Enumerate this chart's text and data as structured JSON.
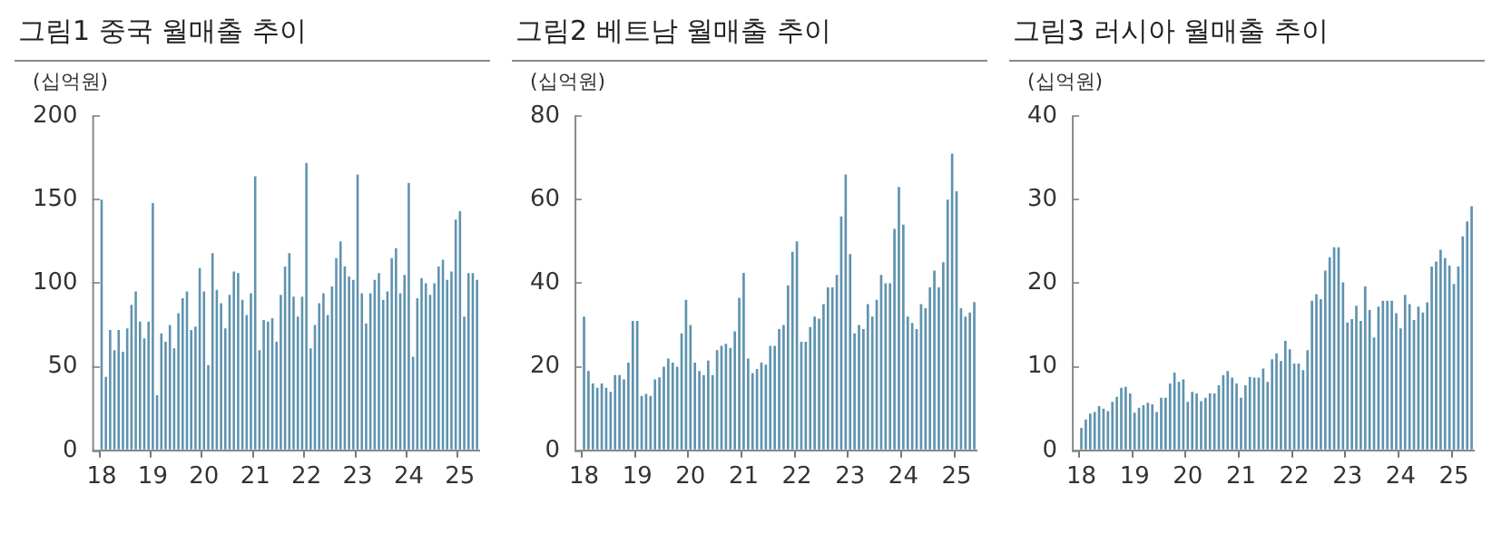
{
  "chart_data": [
    {
      "type": "bar",
      "title": "그림1 중국 월매출 추이",
      "ylabel": "(십억원)",
      "color": "#5f93af",
      "ylim": [
        0,
        200
      ],
      "yticks": [
        0,
        50,
        100,
        150,
        200
      ],
      "grid": false,
      "legend": false,
      "categories": [
        "18",
        null,
        null,
        null,
        null,
        null,
        null,
        null,
        null,
        null,
        null,
        null,
        "19",
        null,
        null,
        null,
        null,
        null,
        null,
        null,
        null,
        null,
        null,
        null,
        "20",
        null,
        null,
        null,
        null,
        null,
        null,
        null,
        null,
        null,
        null,
        null,
        "21",
        null,
        null,
        null,
        null,
        null,
        null,
        null,
        null,
        null,
        null,
        null,
        "22",
        null,
        null,
        null,
        null,
        null,
        null,
        null,
        null,
        null,
        null,
        null,
        "23",
        null,
        null,
        null,
        null,
        null,
        null,
        null,
        null,
        null,
        null,
        null,
        "24",
        null,
        null,
        null,
        null,
        null,
        null,
        null,
        null,
        null,
        null,
        null,
        "25",
        null,
        null,
        null,
        null
      ],
      "values": [
        150,
        44,
        72,
        60,
        72,
        59,
        73,
        87,
        95,
        77,
        67,
        77,
        148,
        33,
        70,
        65,
        75,
        61,
        82,
        91,
        95,
        72,
        74,
        109,
        95,
        51,
        118,
        96,
        88,
        73,
        93,
        107,
        106,
        90,
        81,
        94,
        164,
        60,
        78,
        77,
        79,
        65,
        93,
        110,
        118,
        92,
        80,
        92,
        172,
        61,
        75,
        88,
        94,
        81,
        98,
        115,
        125,
        110,
        104,
        102,
        165,
        94,
        76,
        94,
        102,
        106,
        90,
        95,
        115,
        121,
        94,
        105,
        160,
        56,
        91,
        103,
        100,
        93,
        100,
        110,
        114,
        102,
        107,
        138,
        143,
        80,
        106,
        106,
        102
      ]
    },
    {
      "type": "bar",
      "title": "그림2 베트남 월매출 추이",
      "ylabel": "(십억원)",
      "color": "#5f93af",
      "ylim": [
        0,
        80
      ],
      "yticks": [
        0,
        20,
        40,
        60,
        80
      ],
      "grid": false,
      "legend": false,
      "categories": [
        "18",
        null,
        null,
        null,
        null,
        null,
        null,
        null,
        null,
        null,
        null,
        null,
        "19",
        null,
        null,
        null,
        null,
        null,
        null,
        null,
        null,
        null,
        null,
        null,
        "20",
        null,
        null,
        null,
        null,
        null,
        null,
        null,
        null,
        null,
        null,
        null,
        "21",
        null,
        null,
        null,
        null,
        null,
        null,
        null,
        null,
        null,
        null,
        null,
        "22",
        null,
        null,
        null,
        null,
        null,
        null,
        null,
        null,
        null,
        null,
        null,
        "23",
        null,
        null,
        null,
        null,
        null,
        null,
        null,
        null,
        null,
        null,
        null,
        "24",
        null,
        null,
        null,
        null,
        null,
        null,
        null,
        null,
        null,
        null,
        null,
        "25",
        null,
        null,
        null,
        null
      ],
      "values": [
        32,
        19,
        16,
        15,
        16,
        15,
        14,
        18,
        18,
        17,
        21,
        31,
        31,
        13,
        13.5,
        13,
        17,
        17.5,
        20,
        22,
        21,
        20,
        28,
        36,
        30,
        21,
        19,
        18,
        21.5,
        18,
        24,
        25,
        25.5,
        24.5,
        28.5,
        36.5,
        42.5,
        22,
        18.5,
        19.5,
        21,
        20.5,
        25,
        25,
        29,
        30,
        39.5,
        47.5,
        50,
        26,
        26,
        29.5,
        32,
        31.5,
        35,
        39,
        39,
        42,
        56,
        66,
        47,
        28,
        30,
        29,
        35,
        32,
        36,
        42,
        40,
        40,
        53,
        63,
        54,
        32,
        30.5,
        29,
        35,
        34,
        39,
        43,
        39,
        45,
        60,
        71,
        62,
        34,
        32,
        33,
        35.5
      ]
    },
    {
      "type": "bar",
      "title": "그림3 러시아 월매출 추이",
      "ylabel": "(십억원)",
      "color": "#5f93af",
      "ylim": [
        0,
        40
      ],
      "yticks": [
        0,
        10,
        20,
        30,
        40
      ],
      "grid": false,
      "legend": false,
      "categories": [
        "18",
        null,
        null,
        null,
        null,
        null,
        null,
        null,
        null,
        null,
        null,
        null,
        "19",
        null,
        null,
        null,
        null,
        null,
        null,
        null,
        null,
        null,
        null,
        null,
        "20",
        null,
        null,
        null,
        null,
        null,
        null,
        null,
        null,
        null,
        null,
        null,
        "21",
        null,
        null,
        null,
        null,
        null,
        null,
        null,
        null,
        null,
        null,
        null,
        "22",
        null,
        null,
        null,
        null,
        null,
        null,
        null,
        null,
        null,
        null,
        null,
        "23",
        null,
        null,
        null,
        null,
        null,
        null,
        null,
        null,
        null,
        null,
        null,
        "24",
        null,
        null,
        null,
        null,
        null,
        null,
        null,
        null,
        null,
        null,
        null,
        "25",
        null,
        null,
        null,
        null
      ],
      "values": [
        2.7,
        3.7,
        4.4,
        4.6,
        5.3,
        5,
        4.7,
        5.8,
        6.4,
        7.5,
        7.6,
        6.8,
        4.5,
        5.1,
        5.4,
        5.7,
        5.5,
        4.6,
        6.3,
        6.3,
        8,
        9.3,
        8.2,
        8.5,
        5.8,
        7,
        6.8,
        5.9,
        6.3,
        6.8,
        6.8,
        7.8,
        9,
        9.5,
        8.7,
        8,
        6.3,
        7.8,
        8.8,
        8.7,
        8.7,
        9.8,
        8.2,
        10.9,
        11.6,
        10.7,
        13.1,
        12.1,
        10.4,
        10.4,
        9.6,
        12,
        17.9,
        18.7,
        18.1,
        21.5,
        23.1,
        24.3,
        24.3,
        20.1,
        15.3,
        15.7,
        17.3,
        15.5,
        19.6,
        16.8,
        13.5,
        17.2,
        17.9,
        17.9,
        17.9,
        16.4,
        14.6,
        18.6,
        17.5,
        15.6,
        17.2,
        16.5,
        17.7,
        22,
        22.6,
        24,
        23,
        22.1,
        19.9,
        22,
        25.6,
        27.4,
        29.2
      ]
    }
  ]
}
